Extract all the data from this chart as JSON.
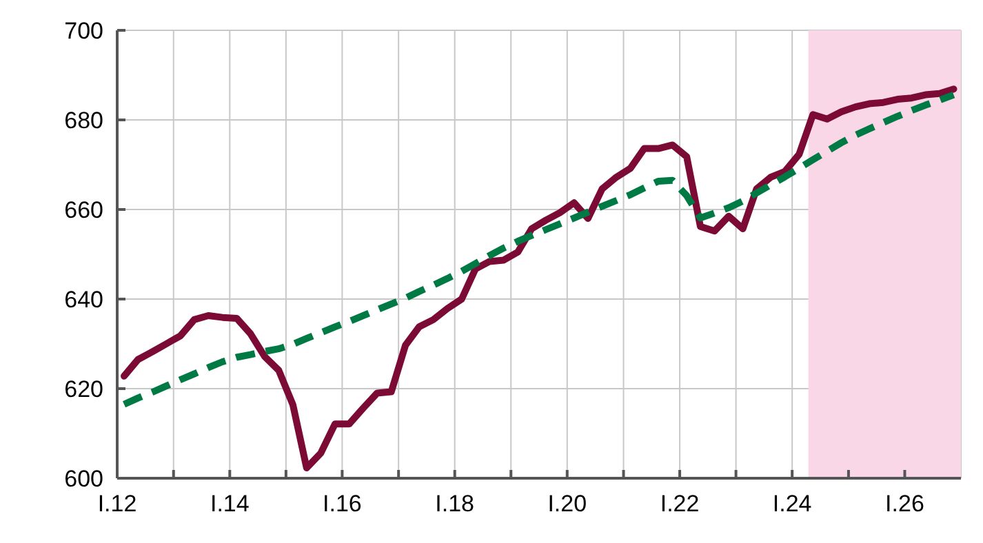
{
  "chart_data": {
    "type": "line",
    "xlim": [
      "2012-01-01",
      "2027-01-01"
    ],
    "xticks": [
      {
        "value": "2012-01-01",
        "label": "I.12"
      },
      {
        "value": "2013-01-01",
        "label": null
      },
      {
        "value": "2014-01-01",
        "label": "I.14"
      },
      {
        "value": "2015-01-01",
        "label": null
      },
      {
        "value": "2016-01-01",
        "label": "I.16"
      },
      {
        "value": "2017-01-01",
        "label": null
      },
      {
        "value": "2018-01-01",
        "label": "I.18"
      },
      {
        "value": "2019-01-01",
        "label": null
      },
      {
        "value": "2020-01-01",
        "label": "I.20"
      },
      {
        "value": "2021-01-01",
        "label": null
      },
      {
        "value": "2022-01-01",
        "label": "I.22"
      },
      {
        "value": "2023-01-01",
        "label": null
      },
      {
        "value": "2024-01-01",
        "label": "I.24"
      },
      {
        "value": "2025-01-01",
        "label": null
      },
      {
        "value": "2026-01-01",
        "label": "I.26"
      }
    ],
    "x": [
      "2012-02-15",
      "2012-05-15",
      "2012-08-15",
      "2012-11-15",
      "2013-02-15",
      "2013-05-15",
      "2013-08-15",
      "2013-11-15",
      "2014-02-15",
      "2014-05-15",
      "2014-08-15",
      "2014-11-15",
      "2015-02-15",
      "2015-05-15",
      "2015-08-15",
      "2015-11-15",
      "2016-02-15",
      "2016-05-15",
      "2016-08-15",
      "2016-11-15",
      "2017-02-15",
      "2017-05-15",
      "2017-08-15",
      "2017-11-15",
      "2018-02-15",
      "2018-05-15",
      "2018-08-15",
      "2018-11-15",
      "2019-02-15",
      "2019-05-15",
      "2019-08-15",
      "2019-11-15",
      "2020-02-15",
      "2020-05-15",
      "2020-08-15",
      "2020-11-15",
      "2021-02-15",
      "2021-05-15",
      "2021-08-15",
      "2021-11-15",
      "2022-02-15",
      "2022-05-15",
      "2022-08-15",
      "2022-11-15",
      "2023-02-15",
      "2023-05-15",
      "2023-08-15",
      "2023-11-15",
      "2024-02-15",
      "2024-05-15",
      "2024-08-15",
      "2024-11-15",
      "2025-02-15",
      "2025-05-15",
      "2025-08-15",
      "2025-11-15",
      "2026-02-15",
      "2026-05-15",
      "2026-08-15",
      "2026-11-15"
    ],
    "ylim": [
      600,
      700
    ],
    "yticks": [
      600,
      620,
      640,
      660,
      680,
      700
    ],
    "grid": true,
    "marker": "none",
    "bands": [
      {
        "axis": "x",
        "from": "2024-04-15",
        "to": "2027-01-01",
        "color": "#f9d7e6"
      }
    ],
    "series": [
      {
        "color": "#7b0a35",
        "line_style": "solid",
        "values": [
          622.8,
          626.5,
          628.2,
          630,
          631.8,
          635.4,
          636.3,
          635.9,
          635.7,
          632.3,
          627.2,
          624.1,
          616.4,
          602.3,
          605.6,
          612.1,
          612.1,
          615.6,
          619,
          619.3,
          629.7,
          633.8,
          635.4,
          637.9,
          640,
          646.7,
          648.4,
          648.7,
          650.5,
          655.7,
          657.6,
          659.3,
          661.5,
          658,
          664.6,
          667.2,
          669.2,
          673.6,
          673.6,
          674.4,
          671.8,
          656.2,
          655.2,
          658.5,
          655.7,
          664.6,
          667.2,
          668.5,
          672.3,
          681.2,
          680.2,
          681.8,
          682.9,
          683.6,
          683.9,
          684.6,
          684.9,
          685.6,
          685.9,
          686.9
        ]
      },
      {
        "color": "#007a45",
        "line_style": "dashed",
        "values": [
          616.5,
          617.9,
          619.2,
          620.6,
          622,
          623.3,
          624.7,
          626,
          627,
          627.6,
          628.3,
          628.9,
          629.9,
          631.2,
          632.5,
          633.8,
          635,
          636.3,
          637.6,
          638.9,
          640.2,
          641.7,
          643.1,
          644.6,
          646.2,
          647.9,
          649.7,
          651.4,
          652.9,
          654.2,
          655.5,
          656.8,
          658.1,
          659.4,
          660.7,
          662,
          663.3,
          664.8,
          666.3,
          666.5,
          663.1,
          658.1,
          659.2,
          660.4,
          661.9,
          663.7,
          665.5,
          667.3,
          669.2,
          671.1,
          673,
          674.9,
          676.6,
          678,
          679.4,
          680.8,
          682.1,
          683.3,
          684.4,
          685.6
        ]
      }
    ]
  }
}
